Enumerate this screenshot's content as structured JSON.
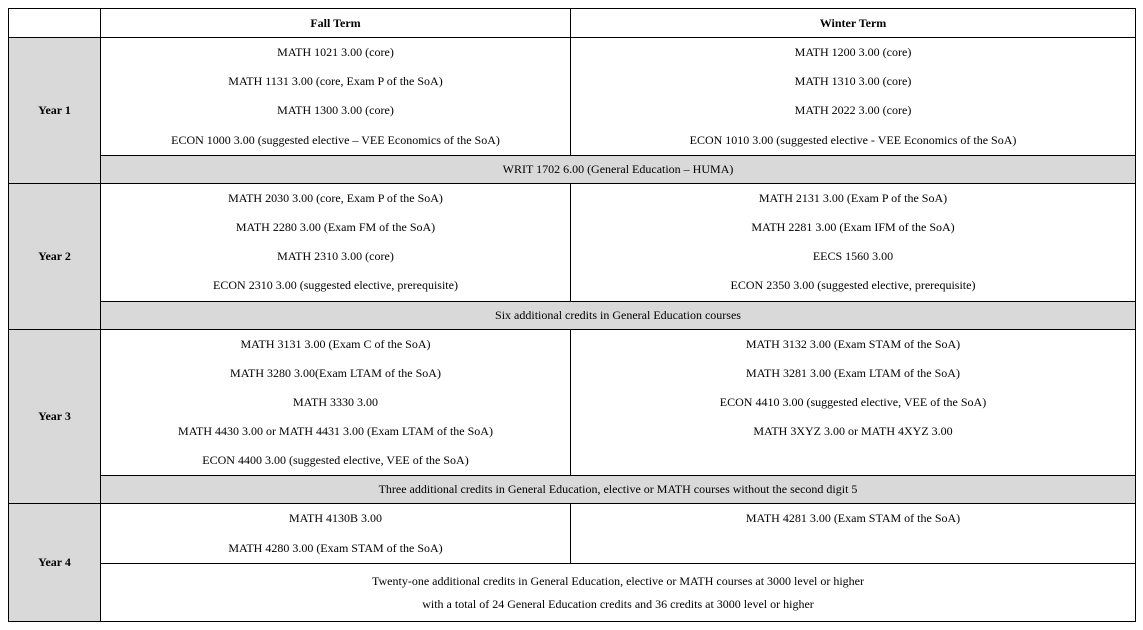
{
  "headers": {
    "blank": "",
    "fall": "Fall Term",
    "winter": "Winter Term"
  },
  "years": {
    "y1": {
      "label": "Year 1",
      "fall": [
        "MATH 1021 3.00 (core)",
        "MATH 1131 3.00 (core, Exam P of the SoA)",
        "MATH 1300 3.00 (core)",
        "ECON 1000 3.00 (suggested elective – VEE Economics of the SoA)"
      ],
      "winter": [
        "MATH 1200 3.00 (core)",
        "MATH 1310 3.00 (core)",
        "MATH 2022 3.00 (core)",
        "ECON 1010 3.00 (suggested elective - VEE Economics of the SoA)"
      ],
      "note": "WRIT 1702 6.00 (General Education – HUMA)",
      "noteShaded": true
    },
    "y2": {
      "label": "Year 2",
      "fall": [
        "MATH 2030 3.00 (core, Exam P of the SoA)",
        "MATH 2280 3.00 (Exam FM of the SoA)",
        "MATH 2310 3.00 (core)",
        "ECON 2310 3.00 (suggested elective, prerequisite)"
      ],
      "winter": [
        "MATH 2131 3.00 (Exam P of the SoA)",
        "MATH 2281 3.00 (Exam IFM of the SoA)",
        "EECS 1560 3.00",
        "ECON 2350 3.00 (suggested elective, prerequisite)"
      ],
      "note": "Six additional credits in General Education courses",
      "noteShaded": true
    },
    "y3": {
      "label": "Year 3",
      "fall": [
        "MATH 3131 3.00 (Exam C of the SoA)",
        "MATH 3280 3.00(Exam LTAM of the SoA)",
        "MATH 3330 3.00",
        "MATH 4430 3.00 or MATH 4431 3.00 (Exam LTAM of the SoA)",
        "ECON 4400 3.00 (suggested elective, VEE of the SoA)"
      ],
      "winter": [
        "MATH 3132 3.00 (Exam STAM of the SoA)",
        "MATH 3281 3.00 (Exam LTAM of the SoA)",
        "ECON 4410 3.00 (suggested elective, VEE of the SoA)",
        "MATH 3XYZ 3.00 or MATH 4XYZ 3.00",
        ""
      ],
      "note": "Three additional credits in General Education, elective or MATH courses without the second digit 5",
      "noteShaded": true
    },
    "y4": {
      "label": "Year 4",
      "fall": [
        "MATH 4130B 3.00",
        "MATH 4280 3.00 (Exam STAM of the SoA)"
      ],
      "winter": [
        "MATH 4281 3.00 (Exam STAM of the SoA)",
        ""
      ],
      "noteLines": [
        "Twenty-one additional credits in General Education, elective or MATH courses at 3000 level or higher",
        "with a total of 24 General Education credits and 36 credits at 3000 level or higher"
      ],
      "noteShaded": false
    }
  }
}
